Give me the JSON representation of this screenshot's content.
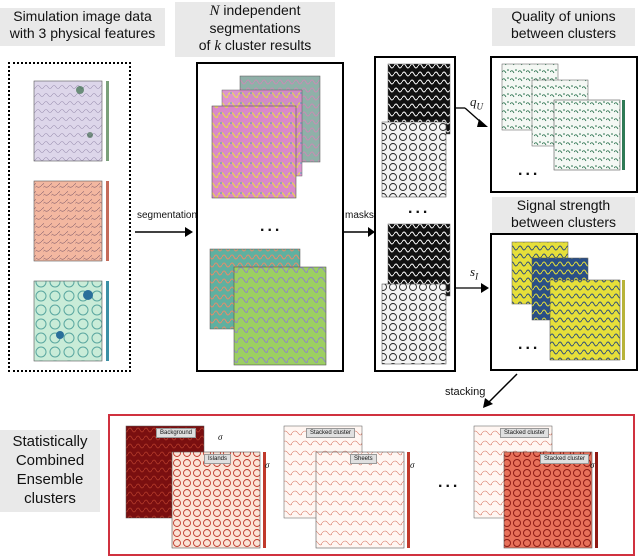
{
  "labels": {
    "input_line1": "Simulation image data",
    "input_line2": "with 3 physical features",
    "seg_line1_var": "N",
    "seg_line1_rest": " independent",
    "seg_line2": "segmentations",
    "seg_line3_pre": "of ",
    "seg_line3_var": "k",
    "seg_line3_rest": " cluster results",
    "quality_line1": "Quality of unions",
    "quality_line2": "between clusters",
    "signal_line1": "Signal strength",
    "signal_line2": "between clusters",
    "stat_line1": "Statistically",
    "stat_line2": "Combined",
    "stat_line3": "Ensemble",
    "stat_line4": "clusters"
  },
  "arrows": {
    "segmentation": "segmentation",
    "masks": "masks",
    "stacking": "stacking",
    "qu": "q",
    "qu_sub": "U",
    "s1": "s",
    "s1_sub": "I"
  },
  "ellipsis": "...",
  "bottom_tags": {
    "background": "Background",
    "islands": "Islands",
    "stacked1": "Stacked cluster",
    "sheets": "Sheets",
    "stacked2": "Stacked cluster",
    "stacked3": "Stacked cluster",
    "sigma": "σ"
  },
  "colors": {
    "frame_black": "#000000",
    "frame_red": "#d0313f",
    "label_bg": "#e9e9e9"
  }
}
